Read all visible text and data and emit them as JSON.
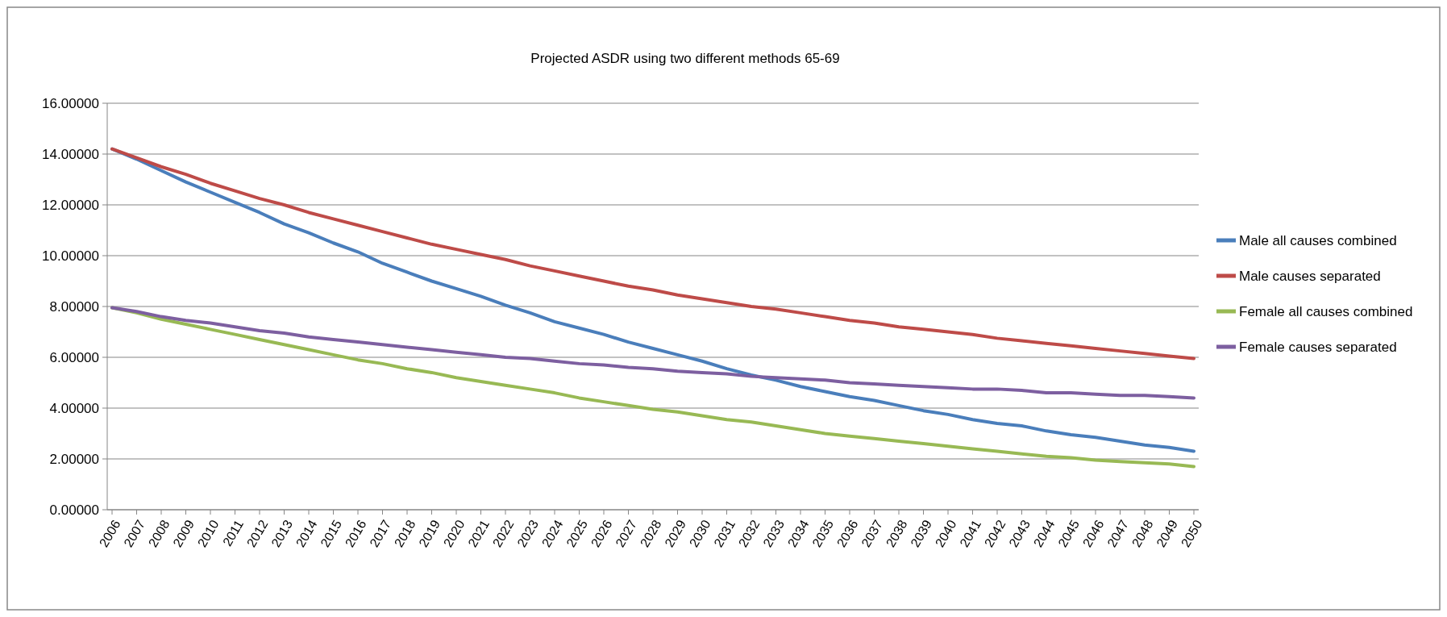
{
  "chart_data": {
    "type": "line",
    "title": "Projected ASDR using two different methods 65-69",
    "categories": [
      "2006",
      "2007",
      "2008",
      "2009",
      "2010",
      "2011",
      "2012",
      "2013",
      "2014",
      "2015",
      "2016",
      "2017",
      "2018",
      "2019",
      "2020",
      "2021",
      "2022",
      "2023",
      "2024",
      "2025",
      "2026",
      "2027",
      "2028",
      "2029",
      "2030",
      "2031",
      "2032",
      "2033",
      "2034",
      "2035",
      "2036",
      "2037",
      "2038",
      "2039",
      "2040",
      "2041",
      "2042",
      "2043",
      "2044",
      "2045",
      "2046",
      "2047",
      "2048",
      "2049",
      "2050"
    ],
    "series": [
      {
        "name": "Male all causes combined",
        "color": "#4a7ebb",
        "values": [
          14.2,
          13.8,
          13.35,
          12.9,
          12.5,
          12.1,
          11.7,
          11.25,
          10.9,
          10.5,
          10.15,
          9.7,
          9.35,
          9.0,
          8.7,
          8.4,
          8.05,
          7.75,
          7.4,
          7.15,
          6.9,
          6.6,
          6.35,
          6.1,
          5.85,
          5.55,
          5.3,
          5.1,
          4.85,
          4.65,
          4.45,
          4.3,
          4.1,
          3.9,
          3.75,
          3.55,
          3.4,
          3.3,
          3.1,
          2.95,
          2.85,
          2.7,
          2.55,
          2.45,
          2.3
        ]
      },
      {
        "name": "Male causes separated",
        "color": "#be4b48",
        "values": [
          14.2,
          13.85,
          13.5,
          13.2,
          12.85,
          12.55,
          12.25,
          12.0,
          11.7,
          11.45,
          11.2,
          10.95,
          10.7,
          10.45,
          10.25,
          10.05,
          9.85,
          9.6,
          9.4,
          9.2,
          9.0,
          8.8,
          8.65,
          8.45,
          8.3,
          8.15,
          8.0,
          7.9,
          7.75,
          7.6,
          7.45,
          7.35,
          7.2,
          7.1,
          7.0,
          6.9,
          6.75,
          6.65,
          6.55,
          6.45,
          6.35,
          6.25,
          6.15,
          6.05,
          5.95
        ]
      },
      {
        "name": "Female all causes combined",
        "color": "#98b954",
        "values": [
          7.95,
          7.75,
          7.5,
          7.3,
          7.1,
          6.9,
          6.7,
          6.5,
          6.3,
          6.1,
          5.9,
          5.75,
          5.55,
          5.4,
          5.2,
          5.05,
          4.9,
          4.75,
          4.6,
          4.4,
          4.25,
          4.1,
          3.95,
          3.85,
          3.7,
          3.55,
          3.45,
          3.3,
          3.15,
          3.0,
          2.9,
          2.8,
          2.7,
          2.6,
          2.5,
          2.4,
          2.3,
          2.2,
          2.1,
          2.05,
          1.95,
          1.9,
          1.85,
          1.8,
          1.7
        ]
      },
      {
        "name": "Female causes separated",
        "color": "#7d5fa0",
        "values": [
          7.95,
          7.8,
          7.6,
          7.45,
          7.35,
          7.2,
          7.05,
          6.95,
          6.8,
          6.7,
          6.6,
          6.5,
          6.4,
          6.3,
          6.2,
          6.1,
          6.0,
          5.95,
          5.85,
          5.75,
          5.7,
          5.6,
          5.55,
          5.45,
          5.4,
          5.35,
          5.25,
          5.2,
          5.15,
          5.1,
          5.0,
          4.95,
          4.9,
          4.85,
          4.8,
          4.75,
          4.75,
          4.7,
          4.6,
          4.6,
          4.55,
          4.5,
          4.5,
          4.45,
          4.4
        ]
      }
    ],
    "ylim": [
      0,
      16
    ],
    "yticks": [
      {
        "value": 0,
        "label": "0.00000"
      },
      {
        "value": 2,
        "label": "2.00000"
      },
      {
        "value": 4,
        "label": "4.00000"
      },
      {
        "value": 6,
        "label": "6.00000"
      },
      {
        "value": 8,
        "label": "8.00000"
      },
      {
        "value": 10,
        "label": "10.00000"
      },
      {
        "value": 12,
        "label": "12.00000"
      },
      {
        "value": 14,
        "label": "14.00000"
      },
      {
        "value": 16,
        "label": "16.00000"
      }
    ],
    "grid": "y",
    "legend": "right",
    "marker": "none",
    "line_style": "solid"
  }
}
